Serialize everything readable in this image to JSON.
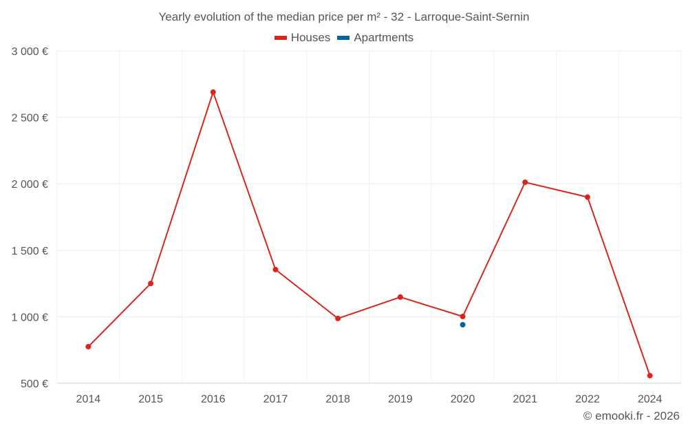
{
  "chart_data": {
    "type": "line",
    "title": "Yearly evolution of the median price per m² - 32 - Larroque-Saint-Sernin",
    "categories": [
      "2014",
      "2015",
      "2016",
      "2017",
      "2018",
      "2019",
      "2020",
      "2021",
      "2022",
      "2024"
    ],
    "series": [
      {
        "name": "Houses",
        "color": "#d7261e",
        "values": [
          775,
          1250,
          2690,
          1355,
          987,
          1148,
          1002,
          2012,
          1900,
          557
        ]
      },
      {
        "name": "Apartments",
        "color": "#06649d",
        "values": [
          null,
          null,
          null,
          null,
          null,
          null,
          940,
          null,
          null,
          null
        ]
      }
    ],
    "ylim": [
      500,
      3000
    ],
    "yticks": [
      500,
      1000,
      1500,
      2000,
      2500,
      3000
    ],
    "ytick_labels": [
      "500 €",
      "1 000 €",
      "1 500 €",
      "2 000 €",
      "2 500 €",
      "3 000 €"
    ],
    "grid": true,
    "legend_position": "top-center",
    "xlabel": "",
    "ylabel": ""
  },
  "credit": "© emooki.fr - 2026"
}
